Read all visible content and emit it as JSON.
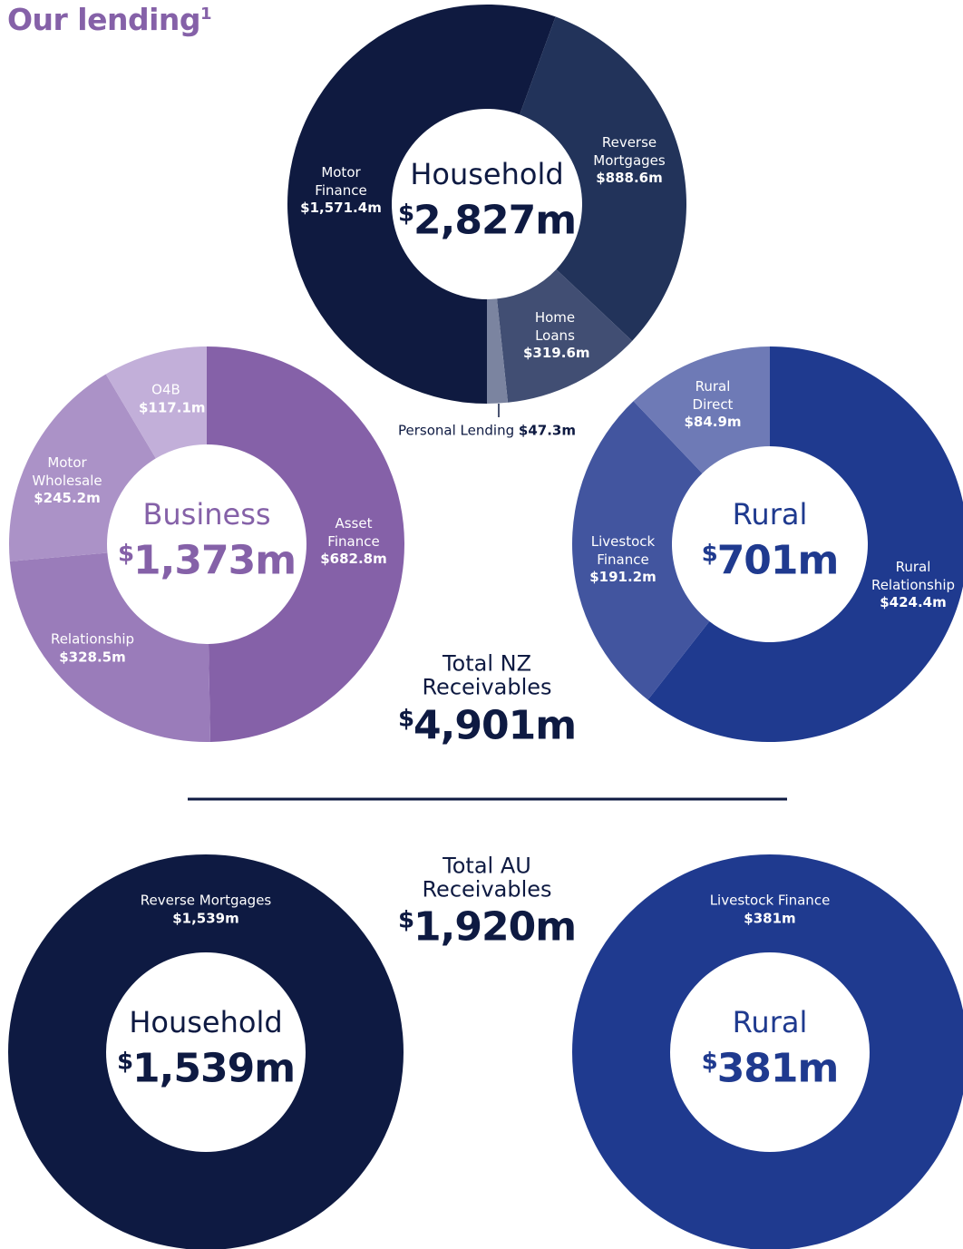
{
  "title": "Our lending",
  "title_note": "1",
  "chart_data": [
    {
      "type": "donut",
      "title": "Household",
      "currency": "$",
      "total": {
        "value": 2827,
        "label": "2,827m"
      },
      "categories": [
        "Motor Finance",
        "Reverse Mortgages",
        "Home Loans",
        "Personal Lending"
      ],
      "values": [
        1571.4,
        888.6,
        319.6,
        47.3
      ],
      "value_labels": [
        "$1,571.4m",
        "$888.6m",
        "$319.6m",
        "$47.3m"
      ],
      "colors": [
        "#0f1a40",
        "#22335a",
        "#414e73",
        "#7b84a0"
      ]
    },
    {
      "type": "donut",
      "title": "Business",
      "currency": "$",
      "total": {
        "value": 1373,
        "label": "1,373m"
      },
      "categories": [
        "Asset Finance",
        "Relationship",
        "Motor Wholesale",
        "O4B"
      ],
      "values": [
        682.8,
        328.5,
        245.2,
        117.1
      ],
      "value_labels": [
        "$682.8m",
        "$328.5m",
        "$245.2m",
        "$117.1m"
      ],
      "colors": [
        "#8561a8",
        "#9a7cba",
        "#ab92c7",
        "#c2afd9"
      ]
    },
    {
      "type": "donut",
      "title": "Rural",
      "currency": "$",
      "total": {
        "value": 701,
        "label": "701m"
      },
      "categories": [
        "Rural Relationship",
        "Livestock Finance",
        "Rural Direct"
      ],
      "values": [
        424.4,
        191.2,
        84.9
      ],
      "value_labels": [
        "$424.4m",
        "$191.2m",
        "$84.9m"
      ],
      "colors": [
        "#1f3a8f",
        "#42559f",
        "#6e7ab6"
      ]
    },
    {
      "type": "donut",
      "title": "Household",
      "currency": "$",
      "total": {
        "value": 1539,
        "label": "1,539m"
      },
      "categories": [
        "Reverse Mortgages"
      ],
      "values": [
        1539
      ],
      "value_labels": [
        "$1,539m"
      ],
      "colors": [
        "#0e1a42"
      ]
    },
    {
      "type": "donut",
      "title": "Rural",
      "currency": "$",
      "total": {
        "value": 381,
        "label": "381m"
      },
      "categories": [
        "Livestock Finance"
      ],
      "values": [
        381
      ],
      "value_labels": [
        "$381m"
      ],
      "colors": [
        "#1f3a8f"
      ]
    }
  ],
  "totals": [
    {
      "label": "Total NZ Receivables",
      "currency": "$",
      "value": 4901,
      "value_label": "4,901m"
    },
    {
      "label": "Total AU Receivables",
      "currency": "$",
      "value": 1920,
      "value_label": "1,920m"
    }
  ]
}
